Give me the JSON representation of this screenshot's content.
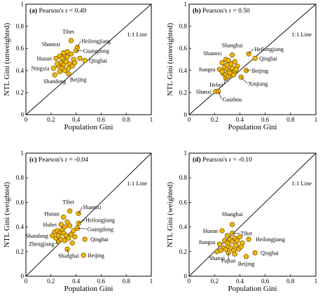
{
  "colors": {
    "marker_fill": "#f2b705",
    "marker_edge": "#6b4e00",
    "axis": "#000000"
  },
  "chart_data": [
    {
      "type": "scatter",
      "panel": "(a)",
      "stat": "Pearson's r = 0.49",
      "xlabel": "Population Gini",
      "ylabel": "NTL Gini (unweighted)",
      "xlim": [
        0,
        1
      ],
      "ylim": [
        0,
        1
      ],
      "reference_line": "1:1 Line",
      "xticks": [
        "0",
        "0.2",
        "0.4",
        "0.6",
        "0.8",
        "1"
      ],
      "yticks": [
        "0",
        "0.2",
        "0.4",
        "0.6",
        "0.8",
        "1"
      ],
      "points": [
        {
          "x": 0.36,
          "y": 0.67,
          "label": "Tibet"
        },
        {
          "x": 0.33,
          "y": 0.57,
          "label": "Shannxi"
        },
        {
          "x": 0.41,
          "y": 0.61,
          "label": "Heilongjiang"
        },
        {
          "x": 0.4,
          "y": 0.58,
          "label": "Guangdong"
        },
        {
          "x": 0.24,
          "y": 0.51,
          "label": "Hunan"
        },
        {
          "x": 0.47,
          "y": 0.49,
          "label": "Qinghai"
        },
        {
          "x": 0.22,
          "y": 0.42,
          "label": "Ningxia"
        },
        {
          "x": 0.34,
          "y": 0.37,
          "label": "Beijing"
        },
        {
          "x": 0.23,
          "y": 0.36,
          "label": "Shandong"
        },
        {
          "x": 0.27,
          "y": 0.53
        },
        {
          "x": 0.29,
          "y": 0.51
        },
        {
          "x": 0.31,
          "y": 0.54
        },
        {
          "x": 0.33,
          "y": 0.52
        },
        {
          "x": 0.36,
          "y": 0.55
        },
        {
          "x": 0.38,
          "y": 0.5
        },
        {
          "x": 0.28,
          "y": 0.47
        },
        {
          "x": 0.3,
          "y": 0.45
        },
        {
          "x": 0.32,
          "y": 0.48
        },
        {
          "x": 0.35,
          "y": 0.46
        },
        {
          "x": 0.37,
          "y": 0.44
        },
        {
          "x": 0.26,
          "y": 0.44
        },
        {
          "x": 0.29,
          "y": 0.42
        },
        {
          "x": 0.31,
          "y": 0.4
        },
        {
          "x": 0.34,
          "y": 0.42
        },
        {
          "x": 0.27,
          "y": 0.39
        },
        {
          "x": 0.25,
          "y": 0.46
        },
        {
          "x": 0.39,
          "y": 0.47
        },
        {
          "x": 0.3,
          "y": 0.56
        },
        {
          "x": 0.43,
          "y": 0.51
        }
      ]
    },
    {
      "type": "scatter",
      "panel": "(b)",
      "stat": "Pearson's r = 0.50",
      "xlabel": "Population Gini",
      "ylabel": "NTL Gini (unweighted)",
      "xlim": [
        0,
        1
      ],
      "ylim": [
        0,
        1
      ],
      "reference_line": "1:1 Line",
      "xticks": [
        "0",
        "0.2",
        "0.4",
        "0.6",
        "0.8",
        "1"
      ],
      "yticks": [
        "0",
        "0.2",
        "0.4",
        "0.6",
        "0.8",
        "1"
      ],
      "points": [
        {
          "x": 0.34,
          "y": 0.54,
          "label": "Shanghai"
        },
        {
          "x": 0.29,
          "y": 0.5,
          "label": "Shannxi"
        },
        {
          "x": 0.47,
          "y": 0.55,
          "label": "Heilongjiang"
        },
        {
          "x": 0.52,
          "y": 0.51,
          "label": "Qinghai"
        },
        {
          "x": 0.24,
          "y": 0.41,
          "label": "Jiangsu"
        },
        {
          "x": 0.45,
          "y": 0.4,
          "label": "Beijing"
        },
        {
          "x": 0.29,
          "y": 0.33,
          "label": "Hebei"
        },
        {
          "x": 0.41,
          "y": 0.34,
          "label": "Xinjiang"
        },
        {
          "x": 0.21,
          "y": 0.21,
          "label": "Shanxi"
        },
        {
          "x": 0.23,
          "y": 0.21,
          "label": "Guizhou"
        },
        {
          "x": 0.26,
          "y": 0.47
        },
        {
          "x": 0.31,
          "y": 0.49
        },
        {
          "x": 0.33,
          "y": 0.46
        },
        {
          "x": 0.36,
          "y": 0.48
        },
        {
          "x": 0.28,
          "y": 0.43
        },
        {
          "x": 0.3,
          "y": 0.41
        },
        {
          "x": 0.32,
          "y": 0.4
        },
        {
          "x": 0.34,
          "y": 0.42
        },
        {
          "x": 0.36,
          "y": 0.39
        },
        {
          "x": 0.27,
          "y": 0.37
        },
        {
          "x": 0.29,
          "y": 0.36
        },
        {
          "x": 0.31,
          "y": 0.35
        },
        {
          "x": 0.33,
          "y": 0.37
        },
        {
          "x": 0.35,
          "y": 0.36
        },
        {
          "x": 0.38,
          "y": 0.44
        },
        {
          "x": 0.26,
          "y": 0.39
        },
        {
          "x": 0.3,
          "y": 0.45
        },
        {
          "x": 0.32,
          "y": 0.38
        },
        {
          "x": 0.37,
          "y": 0.41
        }
      ]
    },
    {
      "type": "scatter",
      "panel": "(c)",
      "stat": "Pearson's r = -0.04",
      "xlabel": "Population Gini",
      "ylabel": "NTL Gini (weighted)",
      "xlim": [
        0,
        1
      ],
      "ylim": [
        0,
        1
      ],
      "reference_line": "1:1 Line",
      "xticks": [
        "0",
        "0.2",
        "0.4",
        "0.6",
        "0.8",
        "1"
      ],
      "yticks": [
        "0",
        "0.2",
        "0.4",
        "0.6",
        "0.8",
        "1"
      ],
      "points": [
        {
          "x": 0.35,
          "y": 0.53,
          "label": "Tibet"
        },
        {
          "x": 0.42,
          "y": 0.51,
          "label": "Shannxi"
        },
        {
          "x": 0.3,
          "y": 0.48,
          "label": "Hunan"
        },
        {
          "x": 0.42,
          "y": 0.43,
          "label": "Heilongjiang"
        },
        {
          "x": 0.28,
          "y": 0.42,
          "label": "Hubei"
        },
        {
          "x": 0.41,
          "y": 0.39,
          "label": "Guangdong"
        },
        {
          "x": 0.21,
          "y": 0.33,
          "label": "Shandong"
        },
        {
          "x": 0.47,
          "y": 0.3,
          "label": "Qinghai"
        },
        {
          "x": 0.26,
          "y": 0.28,
          "label": "Zhengjiang"
        },
        {
          "x": 0.33,
          "y": 0.22,
          "label": "Shanghai"
        },
        {
          "x": 0.46,
          "y": 0.17,
          "label": "Beijing"
        },
        {
          "x": 0.23,
          "y": 0.36
        },
        {
          "x": 0.25,
          "y": 0.37
        },
        {
          "x": 0.27,
          "y": 0.35
        },
        {
          "x": 0.29,
          "y": 0.38
        },
        {
          "x": 0.31,
          "y": 0.4
        },
        {
          "x": 0.33,
          "y": 0.44
        },
        {
          "x": 0.35,
          "y": 0.41
        },
        {
          "x": 0.3,
          "y": 0.35
        },
        {
          "x": 0.32,
          "y": 0.33
        },
        {
          "x": 0.34,
          "y": 0.31
        },
        {
          "x": 0.36,
          "y": 0.34
        },
        {
          "x": 0.38,
          "y": 0.37
        },
        {
          "x": 0.24,
          "y": 0.31
        },
        {
          "x": 0.28,
          "y": 0.3
        },
        {
          "x": 0.31,
          "y": 0.29
        },
        {
          "x": 0.37,
          "y": 0.27
        },
        {
          "x": 0.39,
          "y": 0.32
        },
        {
          "x": 0.26,
          "y": 0.33
        }
      ]
    },
    {
      "type": "scatter",
      "panel": "(d)",
      "stat": "Pearson's r = -0.10",
      "xlabel": "Population Gini",
      "ylabel": "NTL Gini (weighted)",
      "xlim": [
        0,
        1
      ],
      "ylim": [
        0,
        1
      ],
      "reference_line": "1:1 Line",
      "xticks": [
        "0",
        "0.2",
        "0.4",
        "0.6",
        "0.8",
        "1"
      ],
      "yticks": [
        "0",
        "0.2",
        "0.4",
        "0.6",
        "0.8",
        "1"
      ],
      "points": [
        {
          "x": 0.34,
          "y": 0.42,
          "label": "Shanghai"
        },
        {
          "x": 0.26,
          "y": 0.37,
          "label": "Hunan"
        },
        {
          "x": 0.34,
          "y": 0.35,
          "label": "Tibet"
        },
        {
          "x": 0.47,
          "y": 0.3,
          "label": "Heilongjiang"
        },
        {
          "x": 0.24,
          "y": 0.26,
          "label": "Jiangsu"
        },
        {
          "x": 0.52,
          "y": 0.19,
          "label": "Qinghai"
        },
        {
          "x": 0.22,
          "y": 0.2,
          "label": "Shanxi"
        },
        {
          "x": 0.31,
          "y": 0.19,
          "label": "Fujian"
        },
        {
          "x": 0.45,
          "y": 0.16,
          "label": "Beijing"
        },
        {
          "x": 0.28,
          "y": 0.29
        },
        {
          "x": 0.3,
          "y": 0.27
        },
        {
          "x": 0.32,
          "y": 0.3
        },
        {
          "x": 0.34,
          "y": 0.28
        },
        {
          "x": 0.36,
          "y": 0.31
        },
        {
          "x": 0.38,
          "y": 0.29
        },
        {
          "x": 0.4,
          "y": 0.32
        },
        {
          "x": 0.42,
          "y": 0.27
        },
        {
          "x": 0.27,
          "y": 0.23
        },
        {
          "x": 0.29,
          "y": 0.22
        },
        {
          "x": 0.31,
          "y": 0.24
        },
        {
          "x": 0.33,
          "y": 0.23
        },
        {
          "x": 0.35,
          "y": 0.21
        },
        {
          "x": 0.37,
          "y": 0.25
        },
        {
          "x": 0.39,
          "y": 0.22
        },
        {
          "x": 0.25,
          "y": 0.21
        },
        {
          "x": 0.41,
          "y": 0.24
        },
        {
          "x": 0.36,
          "y": 0.18
        },
        {
          "x": 0.3,
          "y": 0.33
        }
      ]
    }
  ]
}
